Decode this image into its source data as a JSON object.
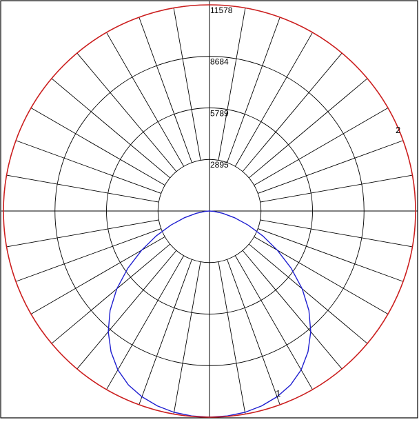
{
  "chart_data": {
    "type": "polar",
    "radial_ticks": [
      2895,
      5789,
      8684,
      11578
    ],
    "rmax": 11578,
    "angular_step_deg": 10,
    "grid": true,
    "colors": {
      "frame": "#000000",
      "grid": "#000000",
      "series_1": "#1f1fd0",
      "series_2": "#cc1f1f"
    },
    "series": [
      {
        "name": "1",
        "color": "#1f1fd0",
        "angles_deg": [
          0,
          5,
          10,
          15,
          20,
          25,
          30,
          35,
          40,
          45,
          50,
          55,
          60,
          65,
          70,
          75,
          80,
          85,
          90
        ],
        "values": [
          11578,
          11550,
          11480,
          11330,
          11100,
          10780,
          10300,
          9650,
          8850,
          7900,
          6800,
          5600,
          4400,
          3300,
          2300,
          1450,
          750,
          250,
          0
        ]
      },
      {
        "name": "2",
        "color": "#cc1f1f",
        "angles_deg": [],
        "values": 11578
      }
    ]
  }
}
